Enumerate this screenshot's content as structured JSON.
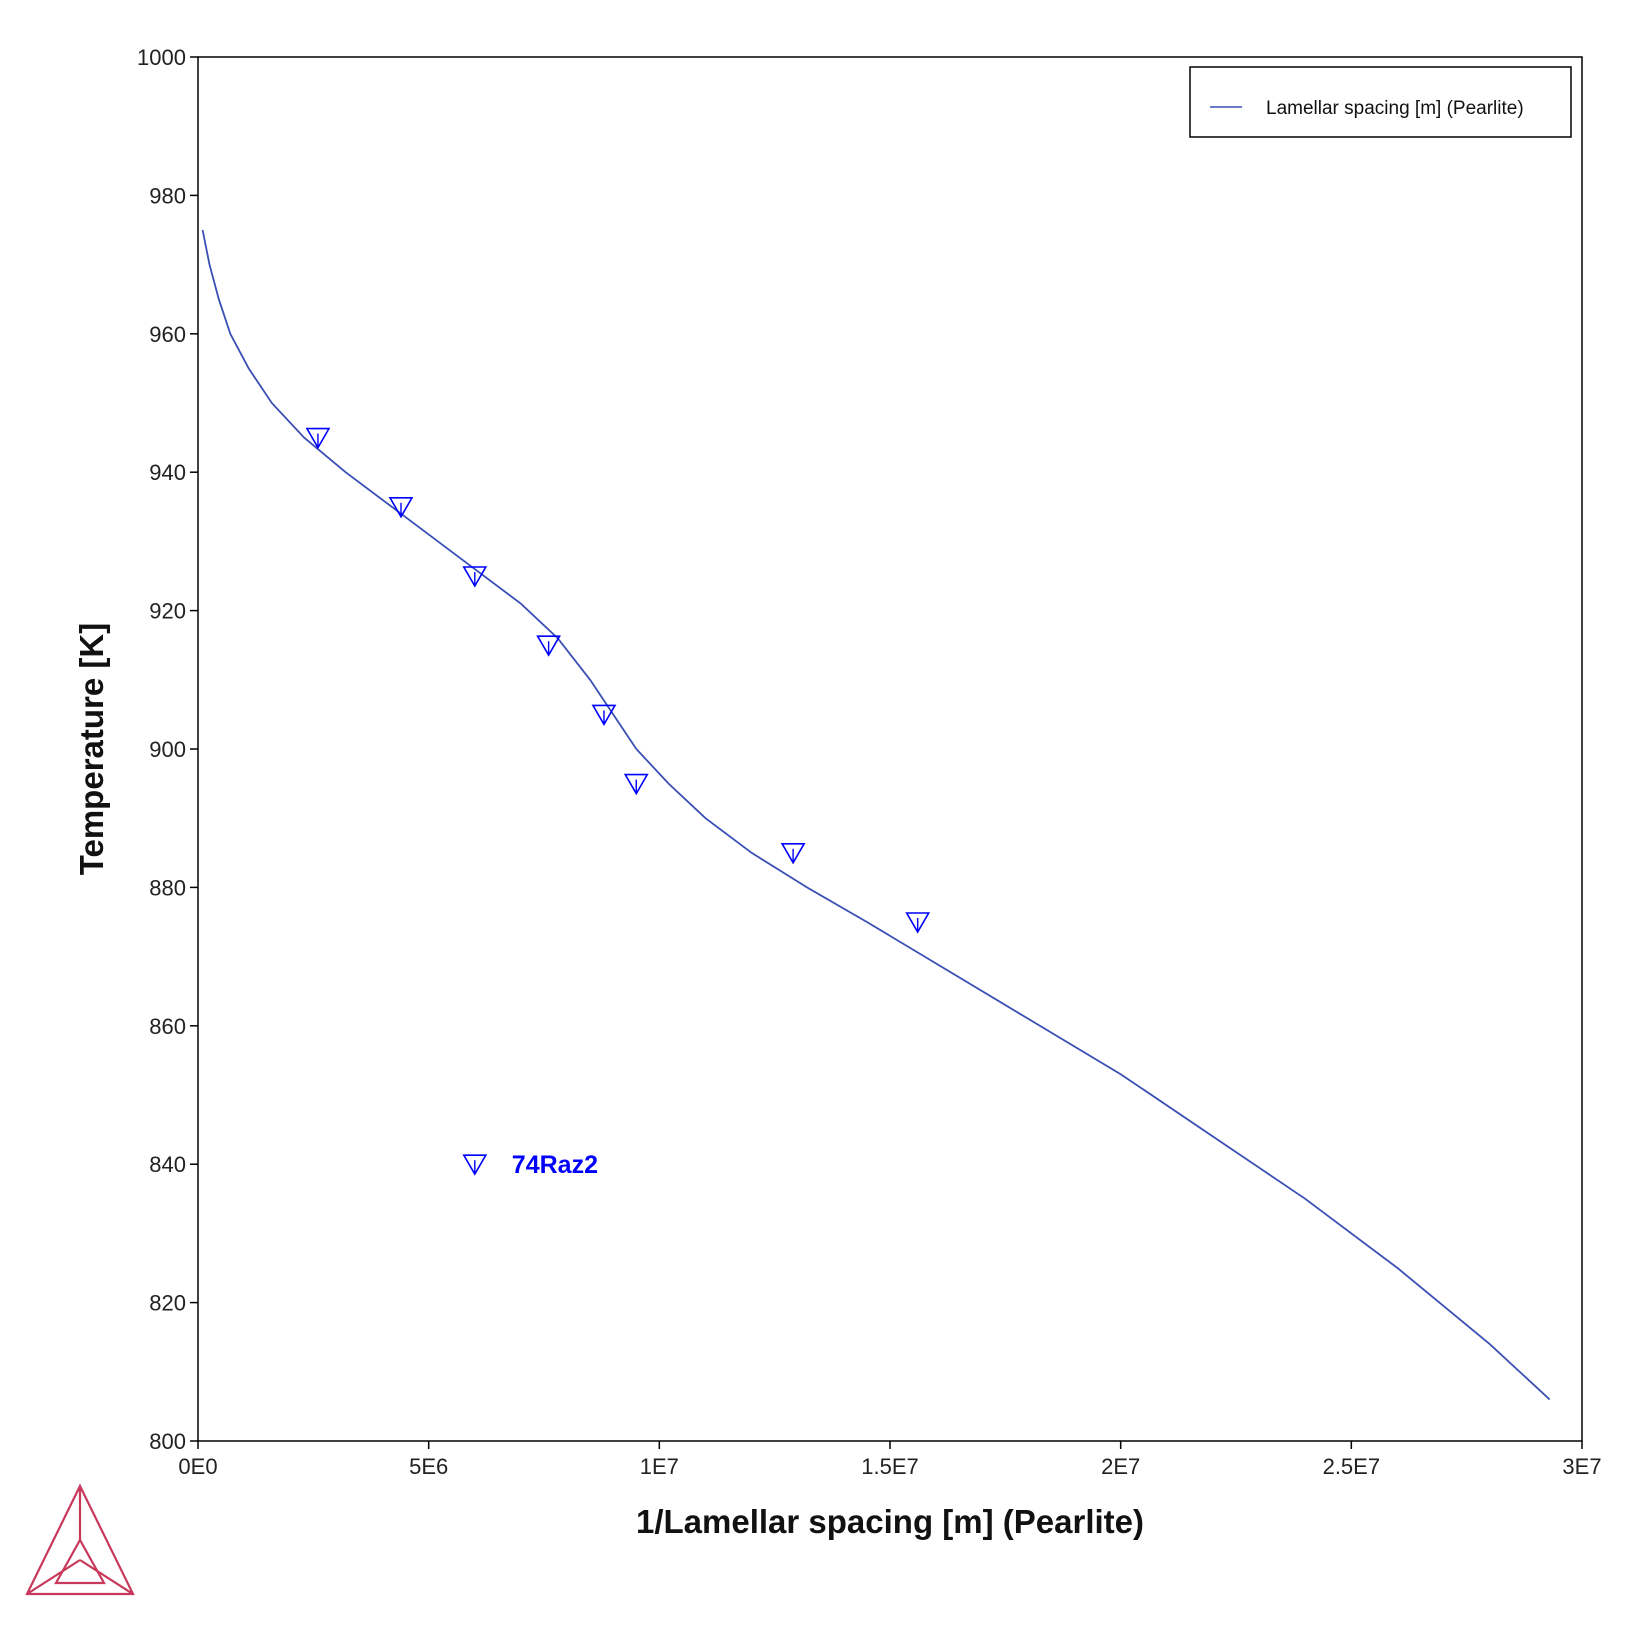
{
  "chart_data": {
    "type": "line",
    "xlabel": "1/Lamellar spacing [m] (Pearlite)",
    "ylabel": "Temperature [K]",
    "xlim": [
      0,
      30000000
    ],
    "ylim": [
      800,
      1000
    ],
    "x_ticks": [
      {
        "value": 0,
        "label": "0E0"
      },
      {
        "value": 5000000,
        "label": "5E6"
      },
      {
        "value": 10000000,
        "label": "1E7"
      },
      {
        "value": 15000000,
        "label": "1.5E7"
      },
      {
        "value": 20000000,
        "label": "2E7"
      },
      {
        "value": 25000000,
        "label": "2.5E7"
      },
      {
        "value": 30000000,
        "label": "3E7"
      }
    ],
    "y_ticks": [
      {
        "value": 800,
        "label": "800"
      },
      {
        "value": 820,
        "label": "820"
      },
      {
        "value": 840,
        "label": "840"
      },
      {
        "value": 860,
        "label": "860"
      },
      {
        "value": 880,
        "label": "880"
      },
      {
        "value": 900,
        "label": "900"
      },
      {
        "value": 920,
        "label": "920"
      },
      {
        "value": 940,
        "label": "940"
      },
      {
        "value": 960,
        "label": "960"
      },
      {
        "value": 980,
        "label": "980"
      },
      {
        "value": 1000,
        "label": "1000"
      }
    ],
    "grid": false,
    "legend_position": "top-right",
    "series": [
      {
        "name": "Lamellar spacing [m] (Pearlite)",
        "kind": "line",
        "color": "#3a4fb5",
        "x": [
          100000,
          250000,
          450000,
          700000,
          1100000,
          1600000,
          2300000,
          3200000,
          4400000,
          5800000,
          7000000,
          7800000,
          8500000,
          9000000,
          9500000,
          10200000,
          11000000,
          12000000,
          13200000,
          14500000,
          16000000,
          18000000,
          20000000,
          22000000,
          24000000,
          26000000,
          28000000,
          29300000
        ],
        "y": [
          975,
          970,
          965,
          960,
          955,
          950,
          945,
          940,
          934,
          927,
          921,
          916,
          910,
          905,
          900,
          895,
          890,
          885,
          880,
          875,
          869,
          861,
          853,
          844,
          835,
          825,
          814,
          806
        ]
      },
      {
        "name": "74Raz2",
        "kind": "marker",
        "marker": "triangle-down",
        "color": "#0000ff",
        "x": [
          2600000,
          4400000,
          6000000,
          7600000,
          8800000,
          9500000,
          12900000,
          15600000
        ],
        "y": [
          945,
          935,
          925,
          915,
          905,
          895,
          885,
          875
        ]
      }
    ],
    "annotations": [
      {
        "text": "74Raz2",
        "x": 6000000,
        "y": 840
      }
    ]
  },
  "logo": {
    "name": "thermo-calc-logo",
    "color": "#c8385a"
  }
}
